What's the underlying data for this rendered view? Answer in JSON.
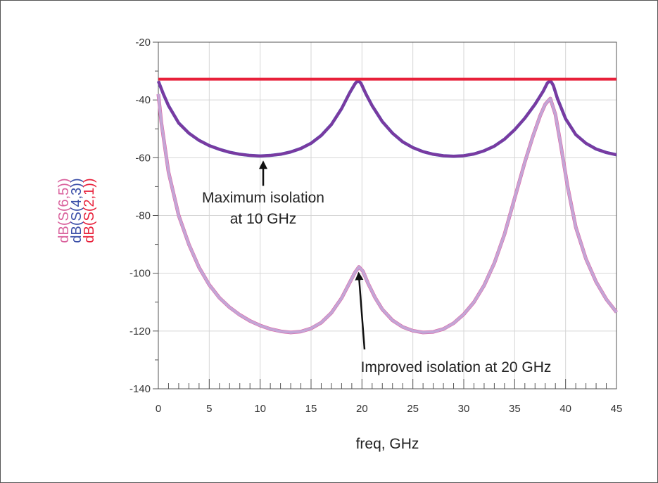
{
  "chart_data": {
    "type": "line",
    "xlabel": "freq, GHz",
    "ylabel_series_labels": [
      "dB(S(6,5))",
      "dB(S(4,3))",
      "dB(S(2,1))"
    ],
    "xlim": [
      0,
      45
    ],
    "ylim": [
      -140,
      -20
    ],
    "x_ticks": [
      0,
      5,
      10,
      15,
      20,
      25,
      30,
      35,
      40,
      45
    ],
    "y_ticks": [
      -20,
      -40,
      -60,
      -80,
      -100,
      -120,
      -140
    ],
    "grid": true,
    "colors": {
      "s21": "#e8203a",
      "s43": "#7a3aa0",
      "s43_edge": "#3b5bbf",
      "s65": "#c3a6d6",
      "s65_edge": "#e0559a",
      "lab_s65": "#d9609c",
      "lab_s43": "#3b4fa8",
      "lab_s21": "#e8203a"
    },
    "series": [
      {
        "name": "dB(S(2,1))",
        "x": [
          0,
          45
        ],
        "y": [
          -32.8,
          -32.8
        ]
      },
      {
        "name": "dB(S(4,3))",
        "x": [
          0,
          0.5,
          1,
          2,
          3,
          4,
          5,
          6,
          7,
          8,
          9,
          10,
          11,
          12,
          13,
          14,
          15,
          16,
          17,
          18,
          18.8,
          19.3,
          19.6,
          19.9,
          20.4,
          21,
          22,
          23,
          24,
          25,
          26,
          27,
          28,
          29,
          30,
          31,
          32,
          33,
          34,
          35,
          36,
          37,
          37.8,
          38.2,
          38.5,
          38.8,
          39.2,
          40,
          41,
          42,
          43,
          44,
          45
        ],
        "y": [
          -33.5,
          -38,
          -42,
          -48,
          -51.5,
          -54,
          -55.8,
          -57.1,
          -58.1,
          -58.8,
          -59.2,
          -59.4,
          -59.2,
          -58.8,
          -58,
          -56.8,
          -55,
          -52.3,
          -48.5,
          -43,
          -37.5,
          -34.5,
          -33.2,
          -34.2,
          -38,
          -42,
          -47.5,
          -51.5,
          -54.5,
          -56.5,
          -57.9,
          -58.8,
          -59.3,
          -59.5,
          -59.3,
          -58.7,
          -57.6,
          -56,
          -53.6,
          -50.3,
          -46.3,
          -41.5,
          -37,
          -34.2,
          -33.2,
          -35,
          -39.5,
          -46.5,
          -52,
          -55,
          -57,
          -58.2,
          -59
        ]
      },
      {
        "name": "dB(S(6,5))",
        "x": [
          0,
          0.3,
          1,
          2,
          3,
          4,
          5,
          6,
          7,
          8,
          9,
          10,
          11,
          12,
          13,
          14,
          15,
          16,
          17,
          18,
          18.8,
          19.3,
          19.7,
          20.1,
          20.6,
          21.3,
          22,
          23,
          24,
          25,
          26,
          27,
          28,
          29,
          30,
          31,
          32,
          33,
          34,
          35,
          36,
          36.8,
          37.5,
          38,
          38.5,
          39,
          39.5,
          40.2,
          41,
          42,
          43,
          44,
          45
        ],
        "y": [
          -38,
          -48,
          -65,
          -80,
          -90,
          -98,
          -104,
          -108.5,
          -111.8,
          -114.4,
          -116.5,
          -118.1,
          -119.3,
          -120.1,
          -120.5,
          -120.2,
          -119.1,
          -117.1,
          -113.7,
          -108.6,
          -103.2,
          -99.8,
          -97.8,
          -99.3,
          -103.5,
          -108.5,
          -112.5,
          -116.3,
          -118.6,
          -119.9,
          -120.5,
          -120.3,
          -119.3,
          -117.3,
          -114.2,
          -110,
          -104.2,
          -96.5,
          -86.5,
          -74,
          -61.5,
          -52.5,
          -45.5,
          -41.5,
          -39.5,
          -45,
          -55,
          -70,
          -84,
          -95,
          -103,
          -109,
          -113.5
        ]
      }
    ],
    "annotations": [
      {
        "lines": [
          "Maximum isolation",
          "at 10 GHz"
        ],
        "points_to": {
          "x": 10.3,
          "y": -59.5
        }
      },
      {
        "lines": [
          "Improved isolation at 20 GHz"
        ],
        "points_to": {
          "x": 19.7,
          "y": -98
        }
      }
    ]
  }
}
